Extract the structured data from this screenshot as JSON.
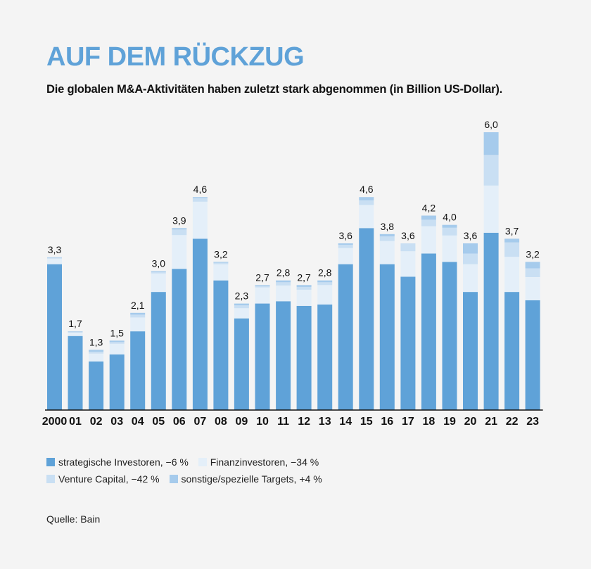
{
  "title": "AUF DEM RÜCKZUG",
  "subtitle": "Die globalen M&A-Aktivitäten haben zuletzt stark abgenommen (in Billion US-Dollar).",
  "source": "Quelle: Bain",
  "colors": {
    "strategic": "#5fa2d8",
    "finance": "#e4eff9",
    "venture": "#c9dff3",
    "other": "#a6cbec"
  },
  "legend": [
    {
      "label": "strategische Investoren, −6 %",
      "color": "#5fa2d8"
    },
    {
      "label": "Finanzinvestoren, −34 %",
      "color": "#e4eff9"
    },
    {
      "label": "Venture Capital, −42 %",
      "color": "#c9dff3"
    },
    {
      "label": "sonstige/spezielle Targets,  +4 %",
      "color": "#a6cbec"
    }
  ],
  "chart_data": {
    "type": "bar",
    "stacked": true,
    "categories": [
      "2000",
      "01",
      "02",
      "03",
      "04",
      "05",
      "06",
      "07",
      "08",
      "09",
      "10",
      "11",
      "12",
      "13",
      "14",
      "15",
      "16",
      "17",
      "18",
      "19",
      "20",
      "21",
      "22",
      "23"
    ],
    "totals_labels": [
      "3,3",
      "1,7",
      "1,3",
      "1,5",
      "2,1",
      "3,0",
      "3,9",
      "4,6",
      "3,2",
      "2,3",
      "2,7",
      "2,8",
      "2,7",
      "2,8",
      "3,6",
      "4,6",
      "3,8",
      "3,6",
      "4,2",
      "4,0",
      "3,6",
      "6,0",
      "3,7",
      "3,2"
    ],
    "series": [
      {
        "name": "strategische Investoren, −6 %",
        "values": [
          3.15,
          1.6,
          1.05,
          1.2,
          1.7,
          2.55,
          3.05,
          3.7,
          2.8,
          1.98,
          2.3,
          2.35,
          2.25,
          2.28,
          3.15,
          3.93,
          3.15,
          2.88,
          3.38,
          3.2,
          2.55,
          3.83,
          2.55,
          2.37
        ]
      },
      {
        "name": "Finanzinvestoren, −34 %",
        "values": [
          0.12,
          0.07,
          0.17,
          0.23,
          0.3,
          0.4,
          0.73,
          0.8,
          0.35,
          0.22,
          0.35,
          0.34,
          0.35,
          0.42,
          0.35,
          0.5,
          0.5,
          0.55,
          0.59,
          0.57,
          0.6,
          1.02,
          0.76,
          0.5
        ]
      },
      {
        "name": "Venture Capital, −42 %",
        "values": [
          0.02,
          0.02,
          0.04,
          0.04,
          0.06,
          0.03,
          0.12,
          0.08,
          0.03,
          0.06,
          0.03,
          0.07,
          0.06,
          0.06,
          0.07,
          0.1,
          0.1,
          0.17,
          0.14,
          0.17,
          0.23,
          0.66,
          0.31,
          0.19
        ]
      },
      {
        "name": "sonstige/spezielle Targets,  +4 %",
        "values": [
          0.01,
          0.01,
          0.04,
          0.03,
          0.04,
          0.02,
          0.03,
          0.02,
          0.02,
          0.04,
          0.02,
          0.04,
          0.04,
          0.04,
          0.03,
          0.07,
          0.05,
          0.0,
          0.09,
          0.06,
          0.22,
          0.49,
          0.08,
          0.14
        ]
      }
    ],
    "ylim": [
      0,
      6.0
    ],
    "xlabel": "",
    "ylabel": ""
  }
}
